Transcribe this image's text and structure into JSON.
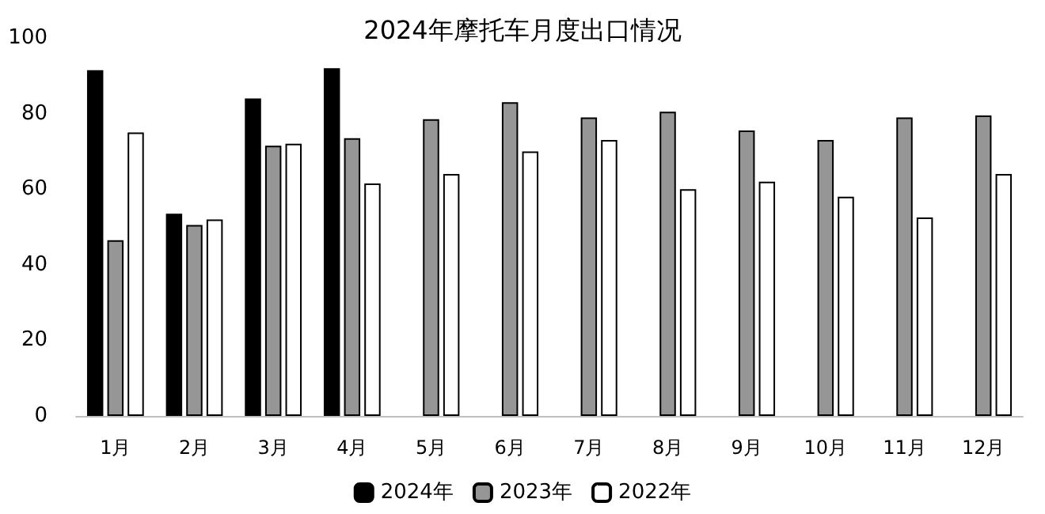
{
  "chart_data": {
    "type": "bar",
    "title": "2024年摩托车月度出口情况",
    "categories": [
      "1月",
      "2月",
      "3月",
      "4月",
      "5月",
      "6月",
      "7月",
      "8月",
      "9月",
      "10月",
      "11月",
      "12月"
    ],
    "series": [
      {
        "name": "2024年",
        "color": "#000000",
        "values": [
          91.5,
          53.5,
          84,
          92,
          null,
          null,
          null,
          null,
          null,
          null,
          null,
          null
        ]
      },
      {
        "name": "2023年",
        "color": "#969696",
        "values": [
          46.5,
          50.5,
          71.5,
          73.5,
          78.5,
          83,
          79,
          80.5,
          75.5,
          73,
          79,
          79.5
        ]
      },
      {
        "name": "2022年",
        "color": "#ffffff",
        "values": [
          75,
          52,
          72,
          61.5,
          64,
          70,
          73,
          60,
          62,
          58,
          52.5,
          64
        ]
      }
    ],
    "ylim": [
      0,
      100
    ],
    "yticks": [
      0,
      20,
      40,
      60,
      80,
      100
    ],
    "grid": false,
    "legend": "bottom"
  }
}
